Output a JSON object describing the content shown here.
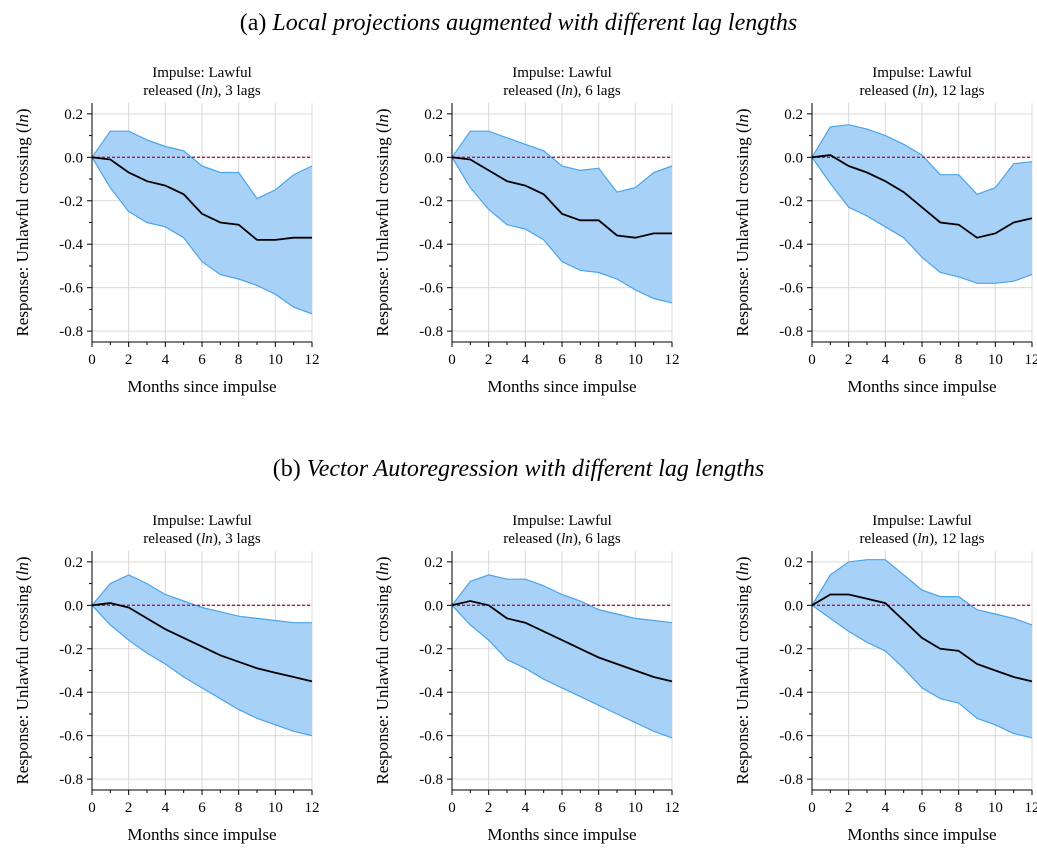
{
  "sections": [
    {
      "label": "(a)",
      "title": "Local projections augmented with different lag lengths"
    },
    {
      "label": "(b)",
      "title": "Vector Autoregression with different lag lengths"
    }
  ],
  "colors": {
    "band_fill": "#a8d1f7",
    "band_edge": "#4aa4ea",
    "line": "#000000",
    "zero_line": "#b5124e",
    "grid": "#d9d9d9"
  },
  "chart_data": [
    {
      "type": "line",
      "panel": "a-1",
      "title_lines": [
        "Impulse: Lawful",
        "released (ln), 3 lags"
      ],
      "title_parts": [
        [
          "Impulse: Lawful",
          false
        ],
        [
          "released (",
          false
        ],
        [
          "ln",
          true
        ],
        [
          "), 3 lags",
          false
        ]
      ],
      "xlabel": "Months since impulse",
      "ylabel": "Response: Unlawful crossing (ln)",
      "xlim": [
        0,
        12
      ],
      "ylim": [
        -0.8,
        0.2
      ],
      "xticks": [
        0,
        2,
        4,
        6,
        8,
        10,
        12
      ],
      "yticks": [
        0.2,
        0.0,
        -0.2,
        -0.4,
        -0.6,
        -0.8
      ],
      "ytick_labels": [
        "0.2",
        "0.0",
        "-0.2",
        "-0.4",
        "-0.6",
        "-0.8"
      ],
      "grid": true,
      "zero_line": true,
      "x": [
        0,
        1,
        2,
        3,
        4,
        5,
        6,
        7,
        8,
        9,
        10,
        11,
        12
      ],
      "series": [
        {
          "values": [
            0.0,
            -0.01,
            -0.07,
            -0.11,
            -0.13,
            -0.17,
            -0.26,
            -0.3,
            -0.31,
            -0.38,
            -0.38,
            -0.37,
            -0.37
          ]
        },
        {
          "values": [
            0.0,
            -0.14,
            -0.25,
            -0.3,
            -0.32,
            -0.37,
            -0.48,
            -0.54,
            -0.56,
            -0.59,
            -0.63,
            -0.69,
            -0.72
          ]
        },
        {
          "values": [
            0.0,
            0.12,
            0.12,
            0.08,
            0.05,
            0.03,
            -0.04,
            -0.07,
            -0.07,
            -0.19,
            -0.15,
            -0.08,
            -0.04
          ]
        }
      ]
    },
    {
      "type": "line",
      "panel": "a-2",
      "title_lines": [
        "Impulse: Lawful",
        "released (ln), 6 lags"
      ],
      "title_parts": [
        [
          "Impulse: Lawful",
          false
        ],
        [
          "released (",
          false
        ],
        [
          "ln",
          true
        ],
        [
          "), 6 lags",
          false
        ]
      ],
      "xlabel": "Months since impulse",
      "ylabel": "Response: Unlawful crossing (ln)",
      "xlim": [
        0,
        12
      ],
      "ylim": [
        -0.8,
        0.2
      ],
      "xticks": [
        0,
        2,
        4,
        6,
        8,
        10,
        12
      ],
      "yticks": [
        0.2,
        0.0,
        -0.2,
        -0.4,
        -0.6,
        -0.8
      ],
      "ytick_labels": [
        "0.2",
        "0.0",
        "-0.2",
        "-0.4",
        "-0.6",
        "-0.8"
      ],
      "grid": true,
      "zero_line": true,
      "x": [
        0,
        1,
        2,
        3,
        4,
        5,
        6,
        7,
        8,
        9,
        10,
        11,
        12
      ],
      "series": [
        {
          "values": [
            0.0,
            -0.01,
            -0.06,
            -0.11,
            -0.13,
            -0.17,
            -0.26,
            -0.29,
            -0.29,
            -0.36,
            -0.37,
            -0.35,
            -0.35
          ]
        },
        {
          "values": [
            0.0,
            -0.14,
            -0.24,
            -0.31,
            -0.33,
            -0.38,
            -0.48,
            -0.52,
            -0.53,
            -0.56,
            -0.61,
            -0.65,
            -0.67
          ]
        },
        {
          "values": [
            0.0,
            0.12,
            0.12,
            0.09,
            0.06,
            0.03,
            -0.04,
            -0.06,
            -0.05,
            -0.16,
            -0.14,
            -0.07,
            -0.04
          ]
        }
      ]
    },
    {
      "type": "line",
      "panel": "a-3",
      "title_lines": [
        "Impulse: Lawful",
        "released (ln), 12 lags"
      ],
      "title_parts": [
        [
          "Impulse: Lawful",
          false
        ],
        [
          "released (",
          false
        ],
        [
          "ln",
          true
        ],
        [
          "), 12 lags",
          false
        ]
      ],
      "xlabel": "Months since impulse",
      "ylabel": "Response: Unlawful crossing (ln)",
      "xlim": [
        0,
        12
      ],
      "ylim": [
        -0.8,
        0.2
      ],
      "xticks": [
        0,
        2,
        4,
        6,
        8,
        10,
        12
      ],
      "yticks": [
        0.2,
        0.0,
        -0.2,
        -0.4,
        -0.6,
        -0.8
      ],
      "ytick_labels": [
        "0.2",
        "0.0",
        "-0.2",
        "-0.4",
        "-0.6",
        "-0.8"
      ],
      "grid": true,
      "zero_line": true,
      "x": [
        0,
        1,
        2,
        3,
        4,
        5,
        6,
        7,
        8,
        9,
        10,
        11,
        12
      ],
      "series": [
        {
          "values": [
            0.0,
            0.01,
            -0.04,
            -0.07,
            -0.11,
            -0.16,
            -0.23,
            -0.3,
            -0.31,
            -0.37,
            -0.35,
            -0.3,
            -0.28
          ]
        },
        {
          "values": [
            0.0,
            -0.12,
            -0.23,
            -0.27,
            -0.32,
            -0.37,
            -0.46,
            -0.53,
            -0.55,
            -0.58,
            -0.58,
            -0.57,
            -0.54
          ]
        },
        {
          "values": [
            0.0,
            0.14,
            0.15,
            0.13,
            0.1,
            0.06,
            0.01,
            -0.08,
            -0.08,
            -0.17,
            -0.14,
            -0.03,
            -0.02
          ]
        }
      ]
    },
    {
      "type": "line",
      "panel": "b-1",
      "title_lines": [
        "Impulse: Lawful",
        "released (ln), 3 lags"
      ],
      "title_parts": [
        [
          "Impulse: Lawful",
          false
        ],
        [
          "released (",
          false
        ],
        [
          "ln",
          true
        ],
        [
          "), 3 lags",
          false
        ]
      ],
      "xlabel": "Months since impulse",
      "ylabel": "Response: Unlawful crossing (ln)",
      "xlim": [
        0,
        12
      ],
      "ylim": [
        -0.8,
        0.2
      ],
      "xticks": [
        0,
        2,
        4,
        6,
        8,
        10,
        12
      ],
      "yticks": [
        0.2,
        0.0,
        -0.2,
        -0.4,
        -0.6,
        -0.8
      ],
      "ytick_labels": [
        "0.2",
        "0.0",
        "-0.2",
        "-0.4",
        "-0.6",
        "-0.8"
      ],
      "grid": true,
      "zero_line": true,
      "x": [
        0,
        1,
        2,
        3,
        4,
        5,
        6,
        7,
        8,
        9,
        10,
        11,
        12
      ],
      "series": [
        {
          "values": [
            0.0,
            0.01,
            -0.01,
            -0.06,
            -0.11,
            -0.15,
            -0.19,
            -0.23,
            -0.26,
            -0.29,
            -0.31,
            -0.33,
            -0.35
          ]
        },
        {
          "values": [
            0.0,
            -0.09,
            -0.16,
            -0.22,
            -0.27,
            -0.33,
            -0.38,
            -0.43,
            -0.48,
            -0.52,
            -0.55,
            -0.58,
            -0.6
          ]
        },
        {
          "values": [
            0.0,
            0.1,
            0.14,
            0.1,
            0.05,
            0.02,
            -0.01,
            -0.03,
            -0.05,
            -0.06,
            -0.07,
            -0.08,
            -0.08
          ]
        }
      ]
    },
    {
      "type": "line",
      "panel": "b-2",
      "title_lines": [
        "Impulse: Lawful",
        "released (ln), 6 lags"
      ],
      "title_parts": [
        [
          "Impulse: Lawful",
          false
        ],
        [
          "released (",
          false
        ],
        [
          "ln",
          true
        ],
        [
          "), 6 lags",
          false
        ]
      ],
      "xlabel": "Months since impulse",
      "ylabel": "Response: Unlawful crossing (ln)",
      "xlim": [
        0,
        12
      ],
      "ylim": [
        -0.8,
        0.2
      ],
      "xticks": [
        0,
        2,
        4,
        6,
        8,
        10,
        12
      ],
      "yticks": [
        0.2,
        0.0,
        -0.2,
        -0.4,
        -0.6,
        -0.8
      ],
      "ytick_labels": [
        "0.2",
        "0.0",
        "-0.2",
        "-0.4",
        "-0.6",
        "-0.8"
      ],
      "grid": true,
      "zero_line": true,
      "x": [
        0,
        1,
        2,
        3,
        4,
        5,
        6,
        7,
        8,
        9,
        10,
        11,
        12
      ],
      "series": [
        {
          "values": [
            0.0,
            0.02,
            0.0,
            -0.06,
            -0.08,
            -0.12,
            -0.16,
            -0.2,
            -0.24,
            -0.27,
            -0.3,
            -0.33,
            -0.35
          ]
        },
        {
          "values": [
            0.0,
            -0.09,
            -0.16,
            -0.25,
            -0.29,
            -0.34,
            -0.38,
            -0.42,
            -0.46,
            -0.5,
            -0.54,
            -0.58,
            -0.61
          ]
        },
        {
          "values": [
            0.0,
            0.11,
            0.14,
            0.12,
            0.12,
            0.09,
            0.05,
            0.02,
            -0.02,
            -0.04,
            -0.06,
            -0.07,
            -0.08
          ]
        }
      ]
    },
    {
      "type": "line",
      "panel": "b-3",
      "title_lines": [
        "Impulse: Lawful",
        "released (ln), 12 lags"
      ],
      "title_parts": [
        [
          "Impulse: Lawful",
          false
        ],
        [
          "released (",
          false
        ],
        [
          "ln",
          true
        ],
        [
          "), 12 lags",
          false
        ]
      ],
      "xlabel": "Months since impulse",
      "ylabel": "Response: Unlawful crossing (ln)",
      "xlim": [
        0,
        12
      ],
      "ylim": [
        -0.8,
        0.2
      ],
      "xticks": [
        0,
        2,
        4,
        6,
        8,
        10,
        12
      ],
      "yticks": [
        0.2,
        0.0,
        -0.2,
        -0.4,
        -0.6,
        -0.8
      ],
      "ytick_labels": [
        "0.2",
        "0.0",
        "-0.2",
        "-0.4",
        "-0.6",
        "-0.8"
      ],
      "grid": true,
      "zero_line": true,
      "x": [
        0,
        1,
        2,
        3,
        4,
        5,
        6,
        7,
        8,
        9,
        10,
        11,
        12
      ],
      "series": [
        {
          "values": [
            0.0,
            0.05,
            0.05,
            0.03,
            0.01,
            -0.07,
            -0.15,
            -0.2,
            -0.21,
            -0.27,
            -0.3,
            -0.33,
            -0.35
          ]
        },
        {
          "values": [
            0.0,
            -0.06,
            -0.12,
            -0.17,
            -0.21,
            -0.29,
            -0.38,
            -0.43,
            -0.45,
            -0.52,
            -0.55,
            -0.59,
            -0.61
          ]
        },
        {
          "values": [
            0.0,
            0.14,
            0.2,
            0.21,
            0.21,
            0.14,
            0.07,
            0.04,
            0.04,
            -0.02,
            -0.04,
            -0.06,
            -0.09
          ]
        }
      ]
    }
  ]
}
